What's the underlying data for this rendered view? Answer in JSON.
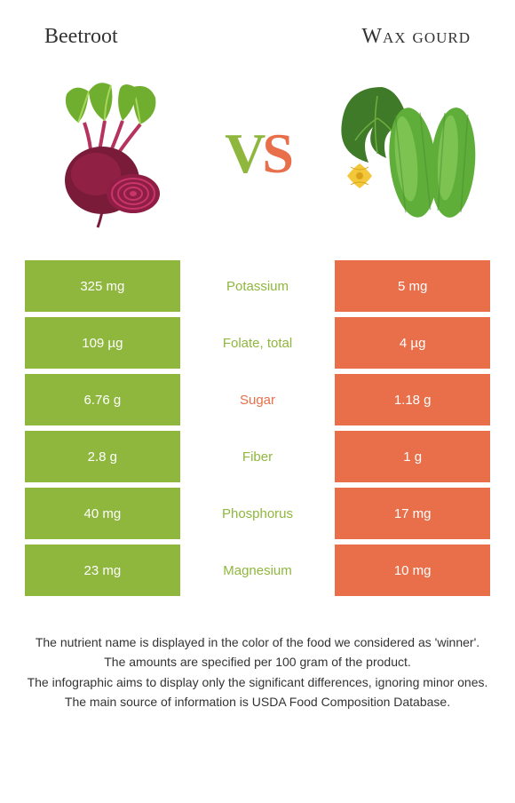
{
  "header": {
    "left_title": "Beetroot",
    "right_title": "Wax gourd"
  },
  "vs": {
    "v": "V",
    "s": "S"
  },
  "colors": {
    "left_bar": "#8fb73e",
    "right_bar": "#e86f4a",
    "winner_left_text": "#8fb73e",
    "winner_right_text": "#e86f4a",
    "background": "#ffffff",
    "text": "#333333"
  },
  "table": {
    "rows": [
      {
        "left": "325 mg",
        "label": "Potassium",
        "right": "5 mg",
        "winner": "left"
      },
      {
        "left": "109 µg",
        "label": "Folate, total",
        "right": "4 µg",
        "winner": "left"
      },
      {
        "left": "6.76 g",
        "label": "Sugar",
        "right": "1.18 g",
        "winner": "right"
      },
      {
        "left": "2.8 g",
        "label": "Fiber",
        "right": "1 g",
        "winner": "left"
      },
      {
        "left": "40 mg",
        "label": "Phosphorus",
        "right": "17 mg",
        "winner": "left"
      },
      {
        "left": "23 mg",
        "label": "Magnesium",
        "right": "10 mg",
        "winner": "left"
      }
    ]
  },
  "footer": {
    "line1": "The nutrient name is displayed in the color of the food we considered as 'winner'.",
    "line2": "The amounts are specified per 100 gram of the product.",
    "line3": "The infographic aims to display only the significant differences, ignoring minor ones.",
    "line4": "The main source of information is USDA Food Composition Database."
  },
  "illustrations": {
    "beetroot": {
      "root_color": "#7a1b3a",
      "root_highlight": "#a8254f",
      "slice_outer": "#8f1e44",
      "slice_rings": "#c9356a",
      "leaf_color": "#6fae2e",
      "leaf_vein": "#a8d65c",
      "stem_color": "#b5335e"
    },
    "wax_gourd": {
      "gourd_color": "#5fae3a",
      "gourd_highlight": "#8fd163",
      "gourd_stripe": "#4a8c2d",
      "leaf_color": "#3f7a28",
      "leaf_vein": "#6fae3e",
      "flower_color": "#f2c83a",
      "flower_center": "#d9a21a"
    }
  }
}
